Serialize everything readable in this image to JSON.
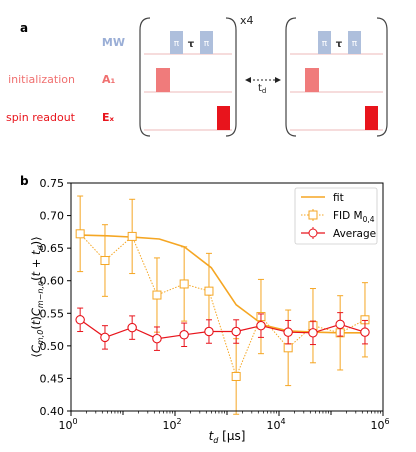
{
  "panel_a": {
    "label": "a",
    "repeat_label": "x4",
    "rows": [
      {
        "label": "MW",
        "color": "#9aaed6"
      },
      {
        "label": "initialization",
        "channel": "A₁",
        "color": "#f07070"
      },
      {
        "label": "spin readout",
        "channel": "Eₓ",
        "color": "#e8141c"
      }
    ],
    "pi_label": "π",
    "tau_label": "τ",
    "delay_label": "t",
    "delay_subscript": "d",
    "colors": {
      "mw": "#aebfdc",
      "init": "#f07b7b",
      "readout": "#e8141c",
      "bracket": "#444444",
      "line": "#e8a0a0"
    }
  },
  "panel_b": {
    "label": "b",
    "chart_data": {
      "type": "line",
      "xscale": "log",
      "xlim": [
        1,
        1000000
      ],
      "ylim": [
        0.4,
        0.75
      ],
      "xlabel": "t_d [µs]",
      "ylabel": "⟨C_{m,0}(t)C_{m−n,n}(t + t_d)⟩",
      "xticks": [
        {
          "v": 1,
          "base": "10",
          "exp": "0"
        },
        {
          "v": 100,
          "base": "10",
          "exp": "2"
        },
        {
          "v": 10000,
          "base": "10",
          "exp": "4"
        },
        {
          "v": 1000000,
          "base": "10",
          "exp": "6"
        }
      ],
      "yticks": [
        "0.40",
        "0.45",
        "0.50",
        "0.55",
        "0.60",
        "0.65",
        "0.70",
        "0.75"
      ],
      "grid": false,
      "legend_position": "top-right",
      "series": [
        {
          "name": "fit",
          "style": "solid-line",
          "color": "#f5a623",
          "points": [
            [
              1.5,
              0.67
            ],
            [
              5,
              0.669
            ],
            [
              15,
              0.667
            ],
            [
              50,
              0.664
            ],
            [
              150,
              0.652
            ],
            [
              500,
              0.62
            ],
            [
              1500,
              0.563
            ],
            [
              5000,
              0.532
            ],
            [
              15000,
              0.523
            ],
            [
              50000,
              0.521
            ],
            [
              150000,
              0.52
            ],
            [
              500000,
              0.52
            ]
          ]
        },
        {
          "name": "FID M",
          "name_subscript": "0,4",
          "style": "dotted-square",
          "color": "#f5a623",
          "points": [
            {
              "x": 1.5,
              "y": 0.672,
              "err": 0.058
            },
            {
              "x": 4.5,
              "y": 0.631,
              "err": 0.055
            },
            {
              "x": 15,
              "y": 0.668,
              "err": 0.057
            },
            {
              "x": 45,
              "y": 0.578,
              "err": 0.057
            },
            {
              "x": 150,
              "y": 0.595,
              "err": 0.057
            },
            {
              "x": 450,
              "y": 0.584,
              "err": 0.058
            },
            {
              "x": 1500,
              "y": 0.453,
              "err": 0.058
            },
            {
              "x": 4500,
              "y": 0.545,
              "err": 0.057
            },
            {
              "x": 15000,
              "y": 0.497,
              "err": 0.058
            },
            {
              "x": 45000,
              "y": 0.531,
              "err": 0.057
            },
            {
              "x": 150000,
              "y": 0.52,
              "err": 0.057
            },
            {
              "x": 450000,
              "y": 0.54,
              "err": 0.057
            }
          ]
        },
        {
          "name": "Average",
          "style": "solid-circle",
          "color": "#e8141c",
          "points": [
            {
              "x": 1.5,
              "y": 0.54,
              "err": 0.018
            },
            {
              "x": 4.5,
              "y": 0.513,
              "err": 0.018
            },
            {
              "x": 15,
              "y": 0.528,
              "err": 0.018
            },
            {
              "x": 45,
              "y": 0.511,
              "err": 0.018
            },
            {
              "x": 150,
              "y": 0.517,
              "err": 0.018
            },
            {
              "x": 450,
              "y": 0.522,
              "err": 0.018
            },
            {
              "x": 1500,
              "y": 0.522,
              "err": 0.018
            },
            {
              "x": 4500,
              "y": 0.531,
              "err": 0.018
            },
            {
              "x": 15000,
              "y": 0.521,
              "err": 0.018
            },
            {
              "x": 45000,
              "y": 0.52,
              "err": 0.018
            },
            {
              "x": 150000,
              "y": 0.533,
              "err": 0.018
            },
            {
              "x": 450000,
              "y": 0.521,
              "err": 0.018
            }
          ]
        }
      ]
    }
  }
}
